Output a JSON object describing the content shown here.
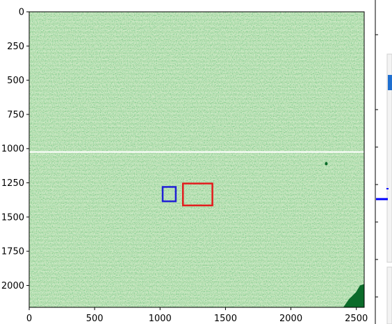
{
  "chart_data": [
    {
      "type": "heatmap",
      "title": "",
      "xlabel": "",
      "ylabel": "",
      "colormap": "Greens",
      "xlim": [
        0,
        2560
      ],
      "ylim": [
        2160,
        0
      ],
      "xticks": [
        0,
        500,
        1000,
        1500,
        2000,
        2500
      ],
      "yticks": [
        0,
        250,
        500,
        750,
        1000,
        1250,
        1500,
        1750,
        2000
      ],
      "xtick_labels": [
        "0",
        "500",
        "1000",
        "1500",
        "2000",
        "2500"
      ],
      "ytick_labels": [
        "0",
        "250",
        "500",
        "750",
        "1000",
        "1250",
        "1500",
        "1750",
        "2000"
      ],
      "gap_row_y": 1025,
      "dark_spot": {
        "x": 2270,
        "y": 1110
      },
      "dark_corner_region": {
        "x": [
          2400,
          2560
        ],
        "y": [
          2030,
          2160
        ]
      },
      "annotations": [
        {
          "shape": "rectangle",
          "color": "#1f1fd6",
          "x": [
            1020,
            1120
          ],
          "y": [
            1280,
            1385
          ]
        },
        {
          "shape": "rectangle",
          "color": "#e31a1c",
          "x": [
            1175,
            1400
          ],
          "y": [
            1255,
            1415
          ]
        }
      ]
    },
    {
      "type": "line",
      "note_visible": "partially visible neighbouring plot at right edge",
      "series_color": "#0000ff"
    }
  ],
  "colors": {
    "background": "#ffffff",
    "heat_base": "#c9e7c1",
    "heat_dark": "#0b6b2a",
    "axis": "#000000",
    "blue_box": "#1f1fd6",
    "red_box": "#e31a1c"
  }
}
